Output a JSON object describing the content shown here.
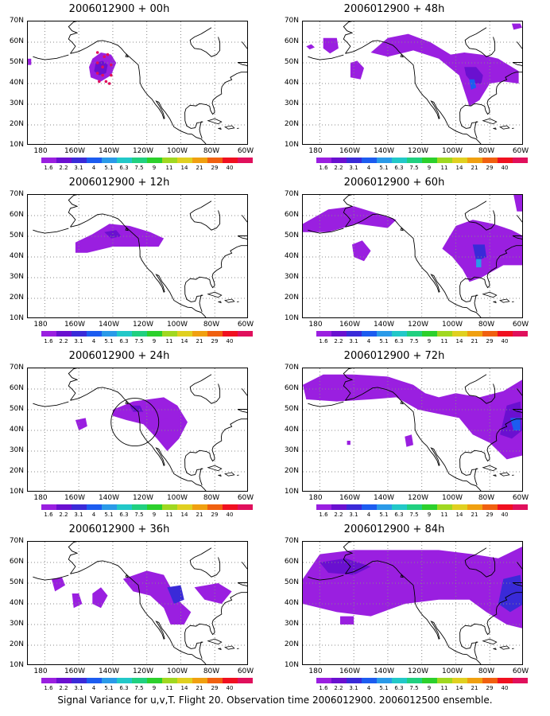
{
  "panels": [
    {
      "title": "2006012900 + 00h"
    },
    {
      "title": "2006012900 + 48h"
    },
    {
      "title": "2006012900 + 12h"
    },
    {
      "title": "2006012900 + 60h"
    },
    {
      "title": "2006012900 + 24h"
    },
    {
      "title": "2006012900 + 72h"
    },
    {
      "title": "2006012900 + 36h"
    },
    {
      "title": "2006012900 + 84h"
    }
  ],
  "axes": {
    "y_labels": [
      "70N",
      "60N",
      "50N",
      "40N",
      "30N",
      "20N",
      "10N"
    ],
    "x_labels": [
      "180",
      "160W",
      "140W",
      "120W",
      "100W",
      "80W",
      "60W"
    ]
  },
  "colorbar": {
    "labels": [
      "1.6",
      "2.2",
      "3.1",
      "4",
      "5.1",
      "6.3",
      "7.5",
      "9",
      "11",
      "14",
      "21",
      "29",
      "40"
    ],
    "colors": [
      "#9a1fe0",
      "#6a10d0",
      "#3a2ad8",
      "#1c5cf0",
      "#2a9ae8",
      "#22c8c8",
      "#20d080",
      "#2cd02c",
      "#a0d820",
      "#e0d020",
      "#f0a010",
      "#f06010",
      "#f01020",
      "#e0105c"
    ]
  },
  "footer": "Signal Variance for u,v,T. Flight 20. Observation time 2006012900. 2006012500 ensemble."
}
